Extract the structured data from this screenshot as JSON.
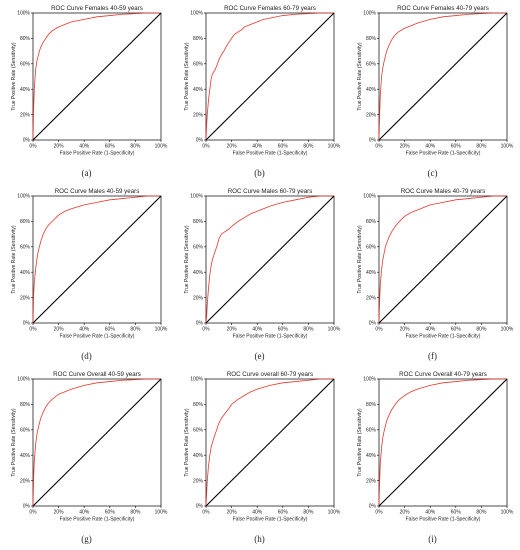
{
  "chart_data": [
    {
      "type": "line",
      "caption": "(a)",
      "title": "ROC Curve Females 40-59 years",
      "xlabel": "False Positive Rate (1-Specificity)",
      "ylabel": "True Positive Rate (Sensitivity)",
      "xlim": [
        0,
        100
      ],
      "ylim": [
        0,
        100
      ],
      "xticks": [
        "0%",
        "20%",
        "40%",
        "60%",
        "80%",
        "100%"
      ],
      "yticks": [
        "0%",
        "20%",
        "40%",
        "60%",
        "80%",
        "100%"
      ],
      "series": [
        {
          "color": "#e8372e",
          "x": [
            0,
            0.5,
            1,
            2,
            3,
            4,
            5,
            6,
            8,
            10,
            12,
            15,
            20,
            25,
            30,
            40,
            50,
            60,
            70,
            80,
            90,
            100
          ],
          "y": [
            0,
            25,
            40,
            55,
            62,
            66,
            70,
            73,
            77,
            80,
            83,
            86,
            89,
            91,
            93,
            95,
            97,
            98,
            99,
            99.5,
            100,
            100
          ]
        },
        {
          "color": "#000000",
          "x": [
            0,
            100
          ],
          "y": [
            0,
            100
          ]
        }
      ]
    },
    {
      "type": "line",
      "caption": "(b)",
      "title": "ROC Curve Females 60-79 years",
      "xlabel": "False Positive Rate (1-Specificity)",
      "ylabel": "True Positive Rate (Sensitivity)",
      "xlim": [
        0,
        100
      ],
      "ylim": [
        0,
        100
      ],
      "xticks": [
        "0%",
        "20%",
        "40%",
        "60%",
        "80%",
        "100%"
      ],
      "yticks": [
        "0%",
        "20%",
        "40%",
        "60%",
        "80%",
        "100%"
      ],
      "series": [
        {
          "color": "#e8372e",
          "x": [
            0,
            0.5,
            1,
            2,
            3,
            4,
            5,
            7,
            9,
            10,
            12,
            14,
            16,
            18,
            20,
            22,
            25,
            28,
            30,
            35,
            40,
            45,
            50,
            60,
            70,
            80,
            90,
            100
          ],
          "y": [
            0,
            12,
            20,
            32,
            40,
            48,
            52,
            55,
            60,
            63,
            67,
            70,
            74,
            77,
            80,
            83,
            85,
            87,
            89,
            91,
            93,
            95,
            96,
            98,
            99,
            99.5,
            100,
            100
          ]
        },
        {
          "color": "#000000",
          "x": [
            0,
            100
          ],
          "y": [
            0,
            100
          ]
        }
      ]
    },
    {
      "type": "line",
      "caption": "(c)",
      "title": "ROC Curve Females 40-79 years",
      "xlabel": "False Positive Rate (1-Specificity)",
      "ylabel": "True Positive Rate (Sensitivity)",
      "xlim": [
        0,
        100
      ],
      "ylim": [
        0,
        100
      ],
      "xticks": [
        "0%",
        "20%",
        "40%",
        "60%",
        "80%",
        "100%"
      ],
      "yticks": [
        "0%",
        "20%",
        "40%",
        "60%",
        "80%",
        "100%"
      ],
      "series": [
        {
          "color": "#e8372e",
          "x": [
            0,
            0.5,
            1,
            2,
            3,
            4,
            5,
            6,
            8,
            10,
            12,
            15,
            20,
            25,
            30,
            40,
            50,
            60,
            70,
            80,
            90,
            100
          ],
          "y": [
            0,
            20,
            35,
            50,
            57,
            62,
            66,
            70,
            75,
            79,
            82,
            85,
            88,
            90,
            92,
            95,
            97,
            98,
            99,
            99.5,
            100,
            100
          ]
        },
        {
          "color": "#000000",
          "x": [
            0,
            100
          ],
          "y": [
            0,
            100
          ]
        }
      ]
    },
    {
      "type": "line",
      "caption": "(d)",
      "title": "ROC Curve Males 40-59 years",
      "xlabel": "False Positive Rate (1-Specificity)",
      "ylabel": "True Positive Rate (Sensitivity)",
      "xlim": [
        0,
        100
      ],
      "ylim": [
        0,
        100
      ],
      "xticks": [
        "0%",
        "20%",
        "40%",
        "60%",
        "80%",
        "100%"
      ],
      "yticks": [
        "0%",
        "20%",
        "40%",
        "60%",
        "80%",
        "100%"
      ],
      "series": [
        {
          "color": "#e8372e",
          "x": [
            0,
            0.5,
            1,
            2,
            3,
            4,
            5,
            6,
            8,
            10,
            12,
            15,
            20,
            25,
            30,
            40,
            50,
            60,
            70,
            80,
            90,
            100
          ],
          "y": [
            0,
            22,
            32,
            42,
            50,
            56,
            60,
            64,
            70,
            74,
            77,
            80,
            85,
            88,
            90,
            93,
            95,
            97,
            98,
            99,
            100,
            100
          ]
        },
        {
          "color": "#000000",
          "x": [
            0,
            100
          ],
          "y": [
            0,
            100
          ]
        }
      ]
    },
    {
      "type": "line",
      "caption": "(e)",
      "title": "ROC Curve Males 60-79 years",
      "xlabel": "False Positive Rate (1-Specificity)",
      "ylabel": "True Positive Rate (Sensitivity)",
      "xlim": [
        0,
        100
      ],
      "ylim": [
        0,
        100
      ],
      "xticks": [
        "0%",
        "20%",
        "40%",
        "60%",
        "80%",
        "100%"
      ],
      "yticks": [
        "0%",
        "20%",
        "40%",
        "60%",
        "80%",
        "100%"
      ],
      "series": [
        {
          "color": "#e8372e",
          "x": [
            0,
            0.5,
            1,
            2,
            3,
            4,
            5,
            7,
            9,
            10,
            12,
            15,
            18,
            20,
            25,
            30,
            35,
            40,
            50,
            60,
            70,
            80,
            90,
            100
          ],
          "y": [
            0,
            5,
            15,
            28,
            38,
            45,
            50,
            56,
            62,
            66,
            70,
            72,
            74,
            76,
            80,
            83,
            86,
            88,
            92,
            95,
            97,
            99,
            100,
            100
          ]
        },
        {
          "color": "#000000",
          "x": [
            0,
            100
          ],
          "y": [
            0,
            100
          ]
        }
      ]
    },
    {
      "type": "line",
      "caption": "(f)",
      "title": "ROC Curve Males 40-79 years",
      "xlabel": "False Positive Rate (1-Specificity)",
      "ylabel": "True Positive Rate (Sensitivity)",
      "xlim": [
        0,
        100
      ],
      "ylim": [
        0,
        100
      ],
      "xticks": [
        "0%",
        "20%",
        "40%",
        "60%",
        "80%",
        "100%"
      ],
      "yticks": [
        "0%",
        "20%",
        "40%",
        "60%",
        "80%",
        "100%"
      ],
      "series": [
        {
          "color": "#e8372e",
          "x": [
            0,
            0.5,
            1,
            2,
            3,
            4,
            5,
            6,
            8,
            10,
            12,
            15,
            20,
            25,
            30,
            40,
            50,
            60,
            70,
            80,
            90,
            100
          ],
          "y": [
            0,
            18,
            30,
            42,
            50,
            55,
            60,
            63,
            68,
            72,
            75,
            79,
            84,
            87,
            89,
            93,
            95,
            97,
            98,
            99,
            100,
            100
          ]
        },
        {
          "color": "#000000",
          "x": [
            0,
            100
          ],
          "y": [
            0,
            100
          ]
        }
      ]
    },
    {
      "type": "line",
      "caption": "(g)",
      "title": "ROC Curve Overall 40-59 years",
      "xlabel": "False Positive Rate (1-Specificity)",
      "ylabel": "True Positive Rate (Sensitivity)",
      "xlim": [
        0,
        100
      ],
      "ylim": [
        0,
        100
      ],
      "xticks": [
        "0%",
        "20%",
        "40%",
        "60%",
        "80%",
        "100%"
      ],
      "yticks": [
        "0%",
        "20%",
        "40%",
        "60%",
        "80%",
        "100%"
      ],
      "series": [
        {
          "color": "#e8372e",
          "x": [
            0,
            0.5,
            1,
            2,
            3,
            4,
            5,
            6,
            8,
            10,
            12,
            15,
            20,
            25,
            30,
            40,
            50,
            60,
            70,
            80,
            90,
            100
          ],
          "y": [
            0,
            22,
            35,
            48,
            56,
            61,
            65,
            69,
            74,
            78,
            81,
            84,
            88,
            90,
            92,
            95,
            97,
            98,
            99,
            99.5,
            100,
            100
          ]
        },
        {
          "color": "#000000",
          "x": [
            0,
            100
          ],
          "y": [
            0,
            100
          ]
        }
      ]
    },
    {
      "type": "line",
      "caption": "(h)",
      "title": "ROC Curve overall 60-79 years",
      "xlabel": "False Positive Rate (1-Specificity)",
      "ylabel": "True Positive Rate (Sensitivity)",
      "xlim": [
        0,
        100
      ],
      "ylim": [
        0,
        100
      ],
      "xticks": [
        "0%",
        "20%",
        "40%",
        "60%",
        "80%",
        "100%"
      ],
      "yticks": [
        "0%",
        "20%",
        "40%",
        "60%",
        "80%",
        "100%"
      ],
      "series": [
        {
          "color": "#e8372e",
          "x": [
            0,
            0.5,
            1,
            2,
            3,
            4,
            5,
            7,
            9,
            10,
            12,
            15,
            18,
            20,
            25,
            30,
            35,
            40,
            50,
            60,
            70,
            80,
            90,
            100
          ],
          "y": [
            0,
            10,
            20,
            32,
            40,
            46,
            50,
            56,
            62,
            65,
            69,
            73,
            77,
            80,
            84,
            87,
            90,
            92,
            95,
            97,
            98,
            99,
            100,
            100
          ]
        },
        {
          "color": "#000000",
          "x": [
            0,
            100
          ],
          "y": [
            0,
            100
          ]
        }
      ]
    },
    {
      "type": "line",
      "caption": "(i)",
      "title": "ROC Curve Overall 40-79 years",
      "xlabel": "False Positive Rate (1-Specificity)",
      "ylabel": "True Positive Rate (Sensitivity)",
      "xlim": [
        0,
        100
      ],
      "ylim": [
        0,
        100
      ],
      "xticks": [
        "0%",
        "20%",
        "40%",
        "60%",
        "80%",
        "100%"
      ],
      "yticks": [
        "0%",
        "20%",
        "40%",
        "60%",
        "80%",
        "100%"
      ],
      "series": [
        {
          "color": "#e8372e",
          "x": [
            0,
            0.5,
            1,
            2,
            3,
            4,
            5,
            6,
            8,
            10,
            12,
            15,
            20,
            25,
            30,
            40,
            50,
            60,
            70,
            80,
            90,
            100
          ],
          "y": [
            0,
            20,
            33,
            46,
            54,
            59,
            63,
            67,
            72,
            76,
            79,
            83,
            87,
            90,
            92,
            95,
            97,
            98,
            99,
            99.5,
            100,
            100
          ]
        },
        {
          "color": "#000000",
          "x": [
            0,
            100
          ],
          "y": [
            0,
            100
          ]
        }
      ]
    }
  ]
}
